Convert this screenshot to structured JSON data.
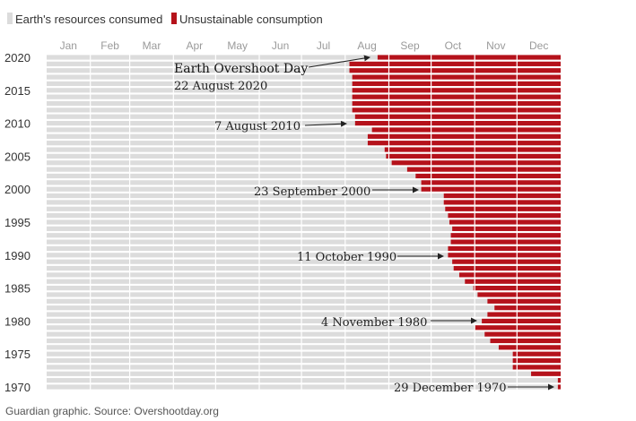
{
  "colors": {
    "consumed": "#dcdcdc",
    "unsustainable": "#b5121b",
    "text": "#333333",
    "month_text": "#9a9a9a",
    "annotation": "#222222"
  },
  "legend": [
    {
      "label": "Earth's resources consumed",
      "color": "#dcdcdc"
    },
    {
      "label": "Unsustainable consumption",
      "color": "#b5121b"
    }
  ],
  "source": "Guardian graphic. Source: Overshootday.org",
  "chart_data": {
    "type": "bar",
    "orientation": "horizontal",
    "stacked": true,
    "x_axis": {
      "ticks": [
        "Jan",
        "Feb",
        "Mar",
        "Apr",
        "May",
        "Jun",
        "Jul",
        "Aug",
        "Sep",
        "Oct",
        "Nov",
        "Dec"
      ],
      "range_days": [
        0,
        365
      ],
      "position": "top"
    },
    "y_axis": {
      "tick_labels": [
        "2020",
        "2015",
        "2010",
        "2005",
        "2000",
        "1995",
        "1990",
        "1985",
        "1980",
        "1975",
        "1970"
      ],
      "range_years": [
        1970,
        2020
      ]
    },
    "series": [
      {
        "name": "Earth's resources consumed",
        "color": "#dcdcdc"
      },
      {
        "name": "Unsustainable consumption",
        "color": "#b5121b"
      }
    ],
    "years": [
      1970,
      1971,
      1972,
      1973,
      1974,
      1975,
      1976,
      1977,
      1978,
      1979,
      1980,
      1981,
      1982,
      1983,
      1984,
      1985,
      1986,
      1987,
      1988,
      1989,
      1990,
      1991,
      1992,
      1993,
      1994,
      1995,
      1996,
      1997,
      1998,
      1999,
      2000,
      2001,
      2002,
      2003,
      2004,
      2005,
      2006,
      2007,
      2008,
      2009,
      2010,
      2011,
      2012,
      2013,
      2014,
      2015,
      2016,
      2017,
      2018,
      2019,
      2020
    ],
    "overshoot_day_of_year": [
      363,
      363,
      344,
      331,
      331,
      331,
      321,
      315,
      311,
      304,
      309,
      313,
      318,
      313,
      306,
      303,
      297,
      293,
      289,
      288,
      285,
      285,
      287,
      287,
      288,
      286,
      285,
      283,
      282,
      282,
      266,
      266,
      262,
      256,
      245,
      241,
      240,
      228,
      228,
      231,
      219,
      219,
      217,
      217,
      217,
      217,
      217,
      217,
      215,
      215,
      235
    ],
    "annotations": [
      {
        "year": 2020,
        "title": "Earth Overshoot Day",
        "label": "22 August 2020"
      },
      {
        "year": 2010,
        "label": "7 August 2010"
      },
      {
        "year": 2000,
        "label": "23 September 2000"
      },
      {
        "year": 1990,
        "label": "11 October 1990"
      },
      {
        "year": 1980,
        "label": "4 November 1980"
      },
      {
        "year": 1970,
        "label": "29 December 1970"
      }
    ],
    "grid": "vertical month lines",
    "legend_position": "top-left"
  }
}
